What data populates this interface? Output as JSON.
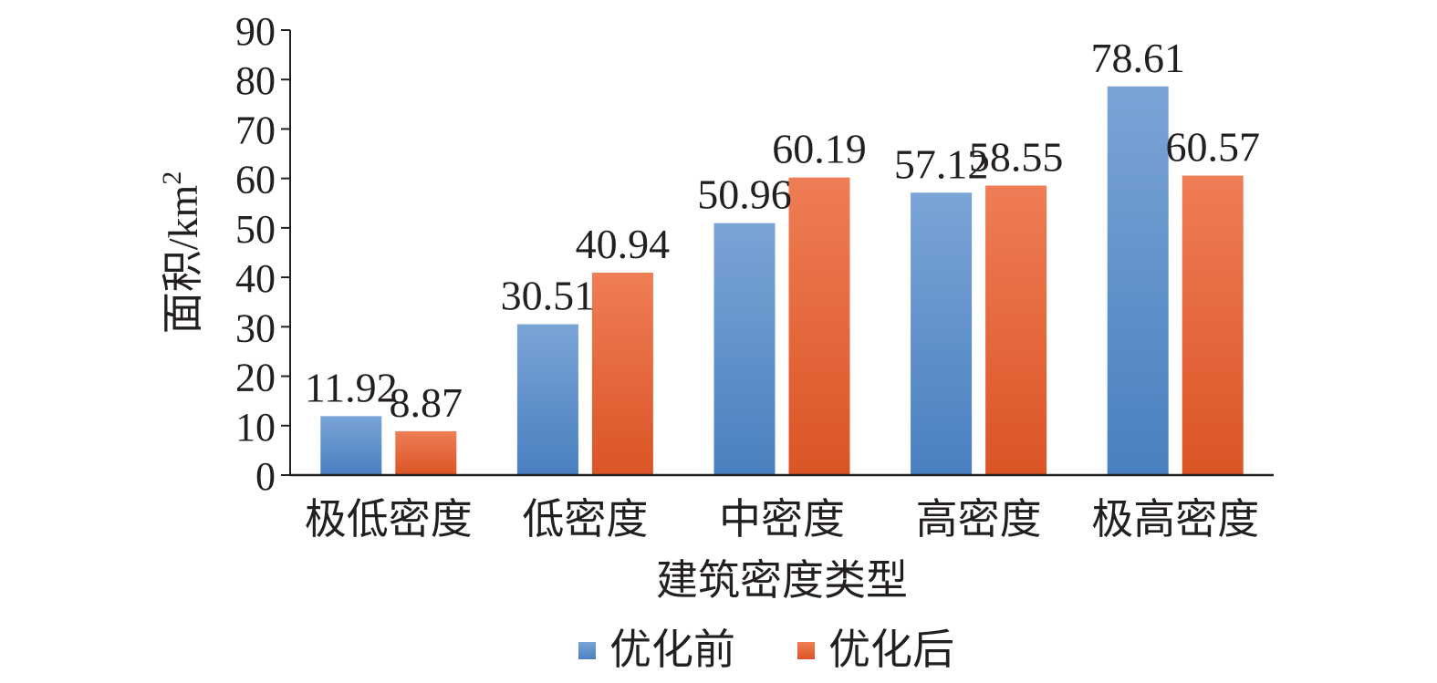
{
  "chart_data": {
    "type": "bar",
    "categories": [
      "极低密度",
      "低密度",
      "中密度",
      "高密度",
      "极高密度"
    ],
    "series": [
      {
        "name": "优化前",
        "values": [
          11.92,
          30.51,
          50.96,
          57.12,
          78.61
        ],
        "labels": [
          "11.92",
          "30.51",
          "50.96",
          "57.12",
          "78.61"
        ]
      },
      {
        "name": "优化后",
        "values": [
          8.87,
          40.94,
          60.19,
          58.55,
          60.57
        ],
        "labels": [
          "8.87",
          "40.94",
          "60.19",
          "58.55",
          "60.57"
        ]
      }
    ],
    "xlabel": "建筑密度类型",
    "ylabel": "面积/km",
    "ylabel_superscript": "2",
    "ylim": [
      0,
      90
    ],
    "yticks": [
      "0",
      "10",
      "20",
      "30",
      "40",
      "50",
      "60",
      "70",
      "80",
      "90"
    ],
    "grid": false,
    "legend_position": "bottom",
    "colors": {
      "series_0": {
        "top": "#7aa4d6",
        "bottom": "#4a7fc0"
      },
      "series_1": {
        "top": "#ef7d55",
        "bottom": "#db5426"
      },
      "axis": "#231f20"
    }
  }
}
